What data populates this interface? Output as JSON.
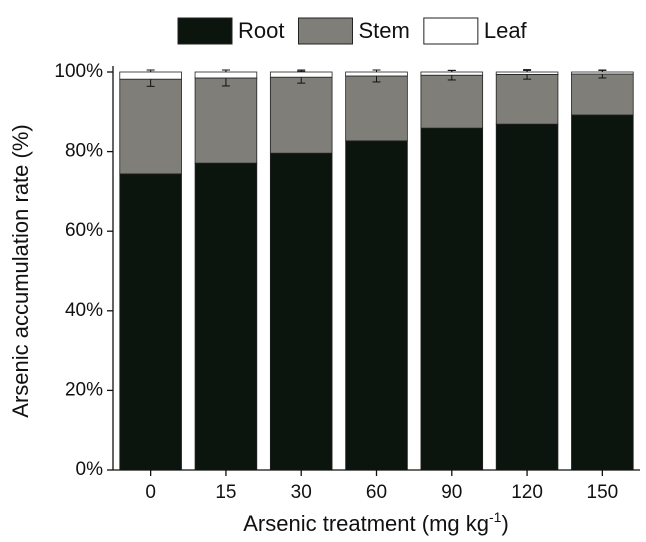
{
  "chart_data": {
    "type": "stacked_bar",
    "categories": [
      "0",
      "15",
      "30",
      "60",
      "90",
      "120",
      "150"
    ],
    "series": [
      {
        "name": "Root",
        "color": "#0b140d",
        "values": [
          74.4,
          77.1,
          79.6,
          82.7,
          85.9,
          86.9,
          89.2
        ],
        "errors": [
          2.7,
          2.6,
          2.7,
          3.0,
          3.0,
          3.2,
          3.5
        ]
      },
      {
        "name": "Stem",
        "color": "#7f7e79",
        "values": [
          23.8,
          21.4,
          19.1,
          16.3,
          13.3,
          12.5,
          10.3
        ],
        "errors": [
          1.8,
          2.0,
          1.5,
          1.5,
          1.2,
          1.2,
          1.0
        ]
      },
      {
        "name": "Leaf",
        "color": "#ffffff",
        "values": [
          1.8,
          1.5,
          1.3,
          1.0,
          0.8,
          0.6,
          0.5
        ],
        "errors": [
          0.5,
          0.5,
          0.5,
          0.5,
          0.4,
          0.4,
          0.4
        ]
      }
    ],
    "ylabel": "Arsenic accumulation rate (%)",
    "xlabel": {
      "text": "Arsenic treatment (mg kg",
      "superscript": "-1",
      "suffix": ")"
    },
    "ylim": [
      0,
      100
    ],
    "yticks": [
      {
        "value": 0,
        "label": "0%"
      },
      {
        "value": 20,
        "label": "20%"
      },
      {
        "value": 40,
        "label": "40%"
      },
      {
        "value": 60,
        "label": "60%"
      },
      {
        "value": 80,
        "label": "80%"
      },
      {
        "value": 100,
        "label": "100%"
      }
    ],
    "legend": "top"
  }
}
